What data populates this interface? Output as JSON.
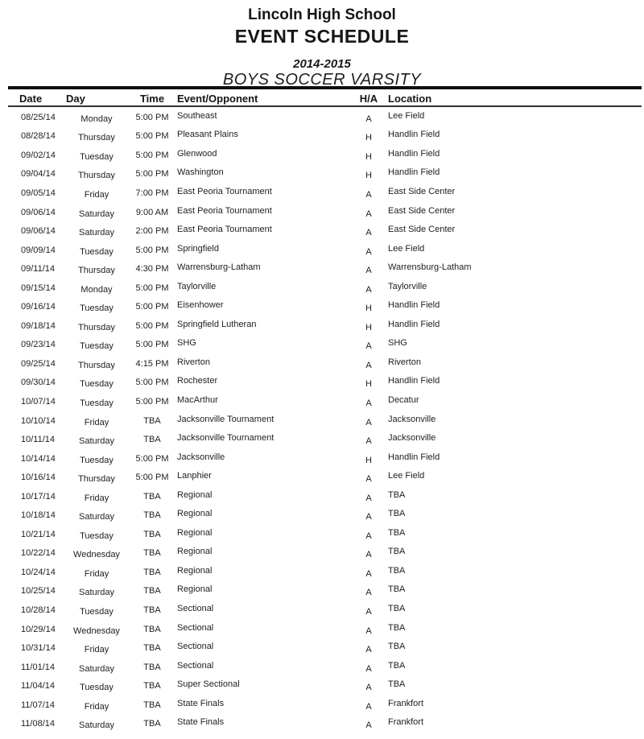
{
  "header": {
    "school": "Lincoln High School",
    "title": "EVENT SCHEDULE",
    "season": "2014-2015",
    "team": "BOYS SOCCER VARSITY"
  },
  "table": {
    "columns": {
      "date": "Date",
      "day": "Day",
      "time": "Time",
      "event": "Event/Opponent",
      "ha": "H/A",
      "location": "Location"
    },
    "rows": [
      [
        "08/25/14",
        "Monday",
        "5:00 PM",
        "Southeast",
        "A",
        "Lee Field"
      ],
      [
        "08/28/14",
        "Thursday",
        "5:00 PM",
        "Pleasant Plains",
        "H",
        "Handlin Field"
      ],
      [
        "09/02/14",
        "Tuesday",
        "5:00 PM",
        "Glenwood",
        "H",
        "Handlin Field"
      ],
      [
        "09/04/14",
        "Thursday",
        "5:00 PM",
        "Washington",
        "H",
        "Handlin Field"
      ],
      [
        "09/05/14",
        "Friday",
        "7:00 PM",
        "East Peoria Tournament",
        "A",
        "East Side Center"
      ],
      [
        "09/06/14",
        "Saturday",
        "9:00 AM",
        "East Peoria Tournament",
        "A",
        "East Side Center"
      ],
      [
        "09/06/14",
        "Saturday",
        "2:00 PM",
        "East Peoria Tournament",
        "A",
        "East Side Center"
      ],
      [
        "09/09/14",
        "Tuesday",
        "5:00 PM",
        "Springfield",
        "A",
        "Lee Field"
      ],
      [
        "09/11/14",
        "Thursday",
        "4:30 PM",
        "Warrensburg-Latham",
        "A",
        "Warrensburg-Latham"
      ],
      [
        "09/15/14",
        "Monday",
        "5:00 PM",
        "Taylorville",
        "A",
        "Taylorville"
      ],
      [
        "09/16/14",
        "Tuesday",
        "5:00 PM",
        "Eisenhower",
        "H",
        "Handlin Field"
      ],
      [
        "09/18/14",
        "Thursday",
        "5:00 PM",
        "Springfield Lutheran",
        "H",
        "Handlin Field"
      ],
      [
        "09/23/14",
        "Tuesday",
        "5:00 PM",
        "SHG",
        "A",
        "SHG"
      ],
      [
        "09/25/14",
        "Thursday",
        "4:15 PM",
        "Riverton",
        "A",
        "Riverton"
      ],
      [
        "09/30/14",
        "Tuesday",
        "5:00 PM",
        "Rochester",
        "H",
        "Handlin Field"
      ],
      [
        "10/07/14",
        "Tuesday",
        "5:00 PM",
        "MacArthur",
        "A",
        "Decatur"
      ],
      [
        "10/10/14",
        "Friday",
        "TBA",
        "Jacksonville Tournament",
        "A",
        "Jacksonville"
      ],
      [
        "10/11/14",
        "Saturday",
        "TBA",
        "Jacksonville Tournament",
        "A",
        "Jacksonville"
      ],
      [
        "10/14/14",
        "Tuesday",
        "5:00 PM",
        "Jacksonville",
        "H",
        "Handlin Field"
      ],
      [
        "10/16/14",
        "Thursday",
        "5:00 PM",
        "Lanphier",
        "A",
        "Lee Field"
      ],
      [
        "10/17/14",
        "Friday",
        "TBA",
        "Regional",
        "A",
        "TBA"
      ],
      [
        "10/18/14",
        "Saturday",
        "TBA",
        "Regional",
        "A",
        "TBA"
      ],
      [
        "10/21/14",
        "Tuesday",
        "TBA",
        "Regional",
        "A",
        "TBA"
      ],
      [
        "10/22/14",
        "Wednesday",
        "TBA",
        "Regional",
        "A",
        "TBA"
      ],
      [
        "10/24/14",
        "Friday",
        "TBA",
        "Regional",
        "A",
        "TBA"
      ],
      [
        "10/25/14",
        "Saturday",
        "TBA",
        "Regional",
        "A",
        "TBA"
      ],
      [
        "10/28/14",
        "Tuesday",
        "TBA",
        "Sectional",
        "A",
        "TBA"
      ],
      [
        "10/29/14",
        "Wednesday",
        "TBA",
        "Sectional",
        "A",
        "TBA"
      ],
      [
        "10/31/14",
        "Friday",
        "TBA",
        "Sectional",
        "A",
        "TBA"
      ],
      [
        "11/01/14",
        "Saturday",
        "TBA",
        "Sectional",
        "A",
        "TBA"
      ],
      [
        "11/04/14",
        "Tuesday",
        "TBA",
        "Super Sectional",
        "A",
        "TBA"
      ],
      [
        "11/07/14",
        "Friday",
        "TBA",
        "State Finals",
        "A",
        "Frankfort"
      ],
      [
        "11/08/14",
        "Saturday",
        "TBA",
        "State Finals",
        "A",
        "Frankfort"
      ]
    ]
  },
  "colors": {
    "text": "#1c1c1c",
    "rule_thick": "#0e0e0e",
    "rule_thin": "#333333",
    "background": "#ffffff"
  }
}
